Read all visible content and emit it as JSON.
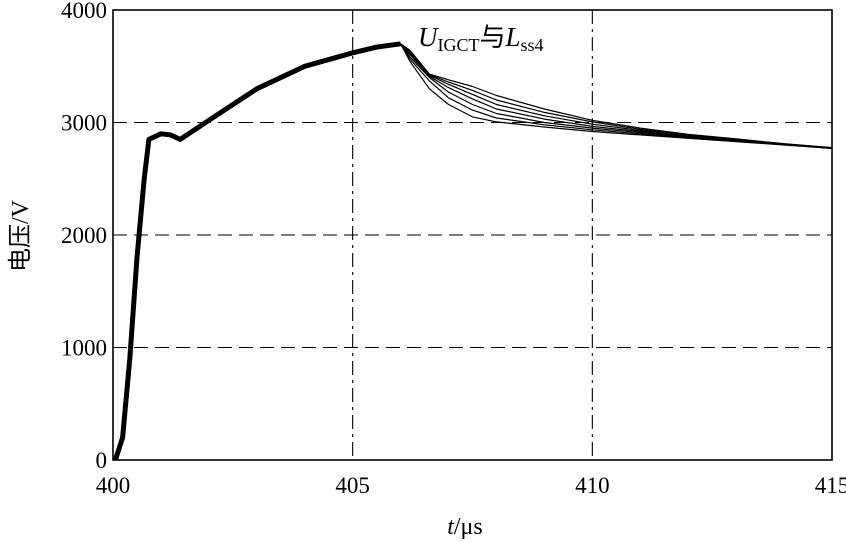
{
  "chart_data": {
    "type": "line",
    "title": "",
    "xlabel_var": "t",
    "xlabel_unit": "/μs",
    "ylabel": "电压/V",
    "xlim": [
      400,
      415
    ],
    "ylim": [
      0,
      4000
    ],
    "xticks": [
      400,
      405,
      410,
      415
    ],
    "yticks": [
      0,
      1000,
      2000,
      3000,
      4000
    ],
    "xtick_labels": [
      "400",
      "405",
      "410",
      "415"
    ],
    "ytick_labels": [
      "0",
      "1000",
      "2000",
      "3000",
      "4000"
    ],
    "grid": true,
    "annotation": {
      "main": "U",
      "sub1": "IGCT",
      "mid": "与",
      "var": "L",
      "sub2": "ss4"
    },
    "common_rise": [
      {
        "x": 400.05,
        "y": 0
      },
      {
        "x": 400.2,
        "y": 200
      },
      {
        "x": 400.35,
        "y": 900
      },
      {
        "x": 400.5,
        "y": 1800
      },
      {
        "x": 400.65,
        "y": 2500
      },
      {
        "x": 400.75,
        "y": 2850
      },
      {
        "x": 401.0,
        "y": 2900
      },
      {
        "x": 401.2,
        "y": 2890
      },
      {
        "x": 401.4,
        "y": 2850
      },
      {
        "x": 402.0,
        "y": 3020
      },
      {
        "x": 403.0,
        "y": 3300
      },
      {
        "x": 404.0,
        "y": 3500
      },
      {
        "x": 405.0,
        "y": 3620
      },
      {
        "x": 405.5,
        "y": 3670
      },
      {
        "x": 406.0,
        "y": 3700
      }
    ],
    "series": [
      {
        "values": [
          {
            "x": 406.2,
            "y": 3540
          },
          {
            "x": 406.6,
            "y": 3300
          },
          {
            "x": 407.0,
            "y": 3160
          },
          {
            "x": 407.5,
            "y": 3050
          },
          {
            "x": 408.0,
            "y": 3005
          },
          {
            "x": 409.0,
            "y": 2960
          },
          {
            "x": 410.0,
            "y": 2920
          },
          {
            "x": 411.0,
            "y": 2890
          },
          {
            "x": 412.0,
            "y": 2860
          },
          {
            "x": 413.0,
            "y": 2830
          },
          {
            "x": 414.0,
            "y": 2800
          },
          {
            "x": 415.0,
            "y": 2770
          }
        ]
      },
      {
        "values": [
          {
            "x": 406.2,
            "y": 3560
          },
          {
            "x": 406.6,
            "y": 3370
          },
          {
            "x": 407.0,
            "y": 3220
          },
          {
            "x": 407.5,
            "y": 3110
          },
          {
            "x": 408.0,
            "y": 3040
          },
          {
            "x": 409.0,
            "y": 2980
          },
          {
            "x": 410.0,
            "y": 2935
          },
          {
            "x": 411.0,
            "y": 2900
          },
          {
            "x": 412.0,
            "y": 2865
          },
          {
            "x": 413.0,
            "y": 2835
          },
          {
            "x": 414.0,
            "y": 2805
          },
          {
            "x": 415.0,
            "y": 2770
          }
        ]
      },
      {
        "values": [
          {
            "x": 406.2,
            "y": 3580
          },
          {
            "x": 406.6,
            "y": 3400
          },
          {
            "x": 407.0,
            "y": 3270
          },
          {
            "x": 407.5,
            "y": 3160
          },
          {
            "x": 408.0,
            "y": 3080
          },
          {
            "x": 409.0,
            "y": 3000
          },
          {
            "x": 410.0,
            "y": 2950
          },
          {
            "x": 411.0,
            "y": 2910
          },
          {
            "x": 412.0,
            "y": 2870
          },
          {
            "x": 413.0,
            "y": 2840
          },
          {
            "x": 414.0,
            "y": 2805
          },
          {
            "x": 415.0,
            "y": 2770
          }
        ]
      },
      {
        "values": [
          {
            "x": 406.2,
            "y": 3600
          },
          {
            "x": 406.6,
            "y": 3410
          },
          {
            "x": 407.0,
            "y": 3310
          },
          {
            "x": 407.5,
            "y": 3210
          },
          {
            "x": 408.0,
            "y": 3120
          },
          {
            "x": 409.0,
            "y": 3030
          },
          {
            "x": 410.0,
            "y": 2965
          },
          {
            "x": 411.0,
            "y": 2920
          },
          {
            "x": 412.0,
            "y": 2875
          },
          {
            "x": 413.0,
            "y": 2840
          },
          {
            "x": 414.0,
            "y": 2805
          },
          {
            "x": 415.0,
            "y": 2770
          }
        ]
      },
      {
        "values": [
          {
            "x": 406.2,
            "y": 3615
          },
          {
            "x": 406.6,
            "y": 3420
          },
          {
            "x": 407.0,
            "y": 3340
          },
          {
            "x": 407.5,
            "y": 3250
          },
          {
            "x": 408.0,
            "y": 3160
          },
          {
            "x": 409.0,
            "y": 3060
          },
          {
            "x": 410.0,
            "y": 2985
          },
          {
            "x": 411.0,
            "y": 2930
          },
          {
            "x": 412.0,
            "y": 2880
          },
          {
            "x": 413.0,
            "y": 2845
          },
          {
            "x": 414.0,
            "y": 2808
          },
          {
            "x": 415.0,
            "y": 2772
          }
        ]
      },
      {
        "values": [
          {
            "x": 406.2,
            "y": 3630
          },
          {
            "x": 406.6,
            "y": 3425
          },
          {
            "x": 407.0,
            "y": 3360
          },
          {
            "x": 407.5,
            "y": 3285
          },
          {
            "x": 408.0,
            "y": 3200
          },
          {
            "x": 409.0,
            "y": 3090
          },
          {
            "x": 410.0,
            "y": 3005
          },
          {
            "x": 411.0,
            "y": 2940
          },
          {
            "x": 412.0,
            "y": 2890
          },
          {
            "x": 413.0,
            "y": 2850
          },
          {
            "x": 414.0,
            "y": 2810
          },
          {
            "x": 415.0,
            "y": 2775
          }
        ]
      },
      {
        "values": [
          {
            "x": 406.2,
            "y": 3640
          },
          {
            "x": 406.6,
            "y": 3430
          },
          {
            "x": 407.0,
            "y": 3380
          },
          {
            "x": 407.5,
            "y": 3320
          },
          {
            "x": 408.0,
            "y": 3240
          },
          {
            "x": 409.0,
            "y": 3120
          },
          {
            "x": 410.0,
            "y": 3020
          },
          {
            "x": 411.0,
            "y": 2950
          },
          {
            "x": 412.0,
            "y": 2895
          },
          {
            "x": 413.0,
            "y": 2855
          },
          {
            "x": 414.0,
            "y": 2812
          },
          {
            "x": 415.0,
            "y": 2777
          }
        ]
      }
    ]
  }
}
